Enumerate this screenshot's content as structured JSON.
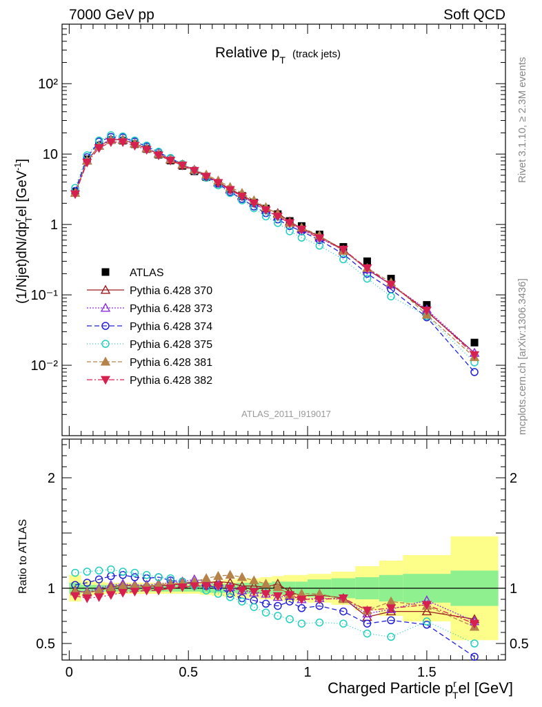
{
  "header": {
    "left": "7000 GeV pp",
    "right": "Soft QCD"
  },
  "side_labels": {
    "rivet": "Rivet 3.1.10, ≥ 2.3M events",
    "mcplots": "mcplots.cern.ch [arXiv:1306.3436]"
  },
  "plot_title": {
    "main": "Relative p",
    "sub": "T",
    "note": "(track jets)"
  },
  "analysis_tag": "ATLAS_2011_I919017",
  "colors": {
    "ATLAS": "#000000",
    "p370": "#9b1b1f",
    "p373": "#8a2be2",
    "p374": "#1f1fd6",
    "p375": "#1ecfbf",
    "p381": "#b5834a",
    "p382": "#d6204f",
    "band_inner": "#8ff08f",
    "band_outer": "#fdfd8a"
  },
  "chart_data": [
    {
      "type": "scatter",
      "title": "Relative pT (track jets)",
      "ylabel": "(1/Njet)dN/dp^r_T el [GeV^-1]",
      "yscale": "log",
      "ylim": [
        0.001,
        700
      ],
      "xlim": [
        -0.03,
        1.83
      ],
      "yticks": [
        "10⁻²",
        "10⁻¹",
        "1",
        "10",
        "10²"
      ],
      "legend_position": "left-middle",
      "x": [
        0.025,
        0.075,
        0.125,
        0.175,
        0.225,
        0.275,
        0.325,
        0.375,
        0.425,
        0.475,
        0.525,
        0.575,
        0.625,
        0.675,
        0.725,
        0.775,
        0.825,
        0.875,
        0.925,
        0.975,
        1.05,
        1.15,
        1.25,
        1.35,
        1.5,
        1.7
      ],
      "series": [
        {
          "name": "ATLAS",
          "key": "ATLAS",
          "marker": "square",
          "dash": "",
          "values": [
            2.9,
            8.4,
            13.2,
            15.8,
            15.5,
            13.8,
            11.8,
            9.8,
            8.1,
            6.8,
            5.7,
            4.7,
            3.8,
            3.1,
            2.55,
            2.05,
            1.68,
            1.4,
            1.12,
            0.95,
            0.72,
            0.48,
            0.3,
            0.17,
            0.072,
            0.021
          ]
        },
        {
          "name": "Pythia 6.428 370",
          "key": "p370",
          "marker": "tri-up-open",
          "dash": "",
          "values": [
            2.8,
            8.0,
            13.0,
            16.0,
            16.0,
            14.0,
            12.0,
            10.0,
            8.3,
            7.0,
            5.9,
            4.9,
            4.0,
            3.2,
            2.6,
            2.1,
            1.7,
            1.45,
            1.1,
            0.88,
            0.68,
            0.44,
            0.23,
            0.14,
            0.058,
            0.015
          ]
        },
        {
          "name": "Pythia 6.428 373",
          "key": "p373",
          "marker": "tri-up-open",
          "dash": "2,2",
          "values": [
            2.8,
            8.1,
            13.2,
            16.2,
            16.1,
            14.2,
            12.2,
            10.2,
            8.5,
            7.1,
            6.0,
            4.9,
            3.9,
            3.1,
            2.5,
            2.0,
            1.6,
            1.3,
            1.05,
            0.85,
            0.65,
            0.43,
            0.23,
            0.14,
            0.062,
            0.015
          ]
        },
        {
          "name": "Pythia 6.428 374",
          "key": "p374",
          "marker": "circle-open",
          "dash": "7,4",
          "values": [
            3.0,
            9.0,
            15.0,
            17.5,
            17.2,
            15.0,
            12.8,
            10.6,
            8.7,
            7.2,
            5.9,
            4.8,
            3.8,
            2.9,
            2.3,
            1.8,
            1.45,
            1.18,
            0.95,
            0.8,
            0.6,
            0.38,
            0.2,
            0.12,
            0.048,
            0.008
          ]
        },
        {
          "name": "Pythia 6.428 375",
          "key": "p375",
          "marker": "circle-open",
          "dash": "1,3",
          "values": [
            3.3,
            9.6,
            15.6,
            18.5,
            17.8,
            15.6,
            13.2,
            10.8,
            8.8,
            7.2,
            5.8,
            4.6,
            3.6,
            2.8,
            2.2,
            1.7,
            1.3,
            1.05,
            0.8,
            0.65,
            0.5,
            0.32,
            0.17,
            0.095,
            0.05,
            0.011
          ]
        },
        {
          "name": "Pythia 6.428 381",
          "key": "p381",
          "marker": "tri-up-filled",
          "dash": "6,3",
          "values": [
            2.8,
            8.0,
            13.0,
            15.8,
            15.8,
            14.0,
            12.0,
            10.0,
            8.4,
            7.1,
            6.0,
            5.1,
            4.2,
            3.4,
            2.8,
            2.2,
            1.75,
            1.4,
            1.05,
            0.9,
            0.7,
            0.42,
            0.24,
            0.15,
            0.052,
            0.013
          ]
        },
        {
          "name": "Pythia 6.428 382",
          "key": "p382",
          "marker": "tri-down-filled",
          "dash": "8,3,2,3",
          "values": [
            2.7,
            7.6,
            12.2,
            14.8,
            14.8,
            13.2,
            11.5,
            9.6,
            8.1,
            6.9,
            5.8,
            4.8,
            3.9,
            3.1,
            2.5,
            2.0,
            1.6,
            1.3,
            1.05,
            0.85,
            0.64,
            0.44,
            0.24,
            0.14,
            0.06,
            0.014
          ]
        }
      ]
    },
    {
      "type": "line",
      "xlabel": "Charged Particle p^r_T el [GeV]",
      "ylabel": "Ratio to ATLAS",
      "ylim": [
        0.35,
        2.35
      ],
      "yticks": [
        0.5,
        1,
        2
      ],
      "xticks": [
        0,
        0.5,
        1,
        1.5
      ],
      "bins": [
        0,
        0.05,
        0.1,
        0.15,
        0.2,
        0.25,
        0.3,
        0.35,
        0.4,
        0.45,
        0.5,
        0.55,
        0.6,
        0.65,
        0.7,
        0.75,
        0.8,
        0.85,
        0.9,
        0.95,
        1.0,
        1.1,
        1.2,
        1.3,
        1.4,
        1.6,
        1.8
      ],
      "band_inner": [
        0.05,
        0.03,
        0.03,
        0.03,
        0.03,
        0.03,
        0.03,
        0.03,
        0.03,
        0.03,
        0.03,
        0.04,
        0.04,
        0.04,
        0.05,
        0.05,
        0.05,
        0.06,
        0.06,
        0.06,
        0.08,
        0.09,
        0.1,
        0.12,
        0.13,
        0.16
      ],
      "band_outer": [
        0.12,
        0.07,
        0.06,
        0.05,
        0.05,
        0.05,
        0.05,
        0.05,
        0.05,
        0.05,
        0.05,
        0.06,
        0.07,
        0.08,
        0.09,
        0.09,
        0.1,
        0.11,
        0.12,
        0.12,
        0.13,
        0.15,
        0.2,
        0.25,
        0.3,
        0.47
      ],
      "x": [
        0.025,
        0.075,
        0.125,
        0.175,
        0.225,
        0.275,
        0.325,
        0.375,
        0.425,
        0.475,
        0.525,
        0.575,
        0.625,
        0.675,
        0.725,
        0.775,
        0.825,
        0.875,
        0.925,
        0.975,
        1.05,
        1.15,
        1.25,
        1.35,
        1.5,
        1.7
      ],
      "series": [
        {
          "name": "Pythia 6.428 370",
          "key": "p370",
          "marker": "tri-up-open",
          "dash": "",
          "values": [
            0.98,
            0.96,
            0.98,
            1.01,
            1.03,
            1.02,
            1.02,
            1.02,
            1.03,
            1.04,
            1.05,
            1.05,
            1.06,
            1.05,
            1.02,
            1.02,
            1.01,
            1.04,
            0.97,
            0.93,
            0.94,
            0.91,
            0.74,
            0.79,
            0.79,
            0.72
          ]
        },
        {
          "name": "Pythia 6.428 373",
          "key": "p373",
          "marker": "tri-up-open",
          "dash": "2,2",
          "values": [
            0.97,
            0.97,
            1.0,
            1.03,
            1.04,
            1.03,
            1.03,
            1.04,
            1.05,
            1.06,
            1.08,
            1.06,
            1.03,
            1.01,
            0.98,
            0.96,
            0.95,
            0.92,
            0.93,
            0.9,
            0.91,
            0.9,
            0.77,
            0.81,
            0.89,
            0.7
          ]
        },
        {
          "name": "Pythia 6.428 374",
          "key": "p374",
          "marker": "circle-open",
          "dash": "7,4",
          "values": [
            1.03,
            1.05,
            1.08,
            1.11,
            1.12,
            1.1,
            1.09,
            1.1,
            1.07,
            1.06,
            1.04,
            1.02,
            1.01,
            0.95,
            0.91,
            0.89,
            0.86,
            0.84,
            0.88,
            0.82,
            0.84,
            0.79,
            0.68,
            0.71,
            0.67,
            0.38
          ]
        },
        {
          "name": "Pythia 6.428 375",
          "key": "p375",
          "marker": "circle-open",
          "dash": "1,3",
          "values": [
            1.14,
            1.15,
            1.16,
            1.17,
            1.15,
            1.14,
            1.12,
            1.1,
            1.09,
            1.06,
            1.02,
            0.98,
            0.95,
            0.92,
            0.88,
            0.83,
            0.78,
            0.75,
            0.72,
            0.68,
            0.69,
            0.68,
            0.59,
            0.56,
            0.7,
            0.5
          ]
        },
        {
          "name": "Pythia 6.428 381",
          "key": "p381",
          "marker": "tri-up-filled",
          "dash": "6,3",
          "values": [
            0.97,
            0.96,
            0.98,
            1.0,
            1.02,
            1.02,
            1.02,
            1.03,
            1.04,
            1.05,
            1.06,
            1.09,
            1.11,
            1.12,
            1.1,
            1.07,
            1.04,
            1.01,
            0.94,
            0.95,
            0.95,
            0.9,
            0.8,
            0.88,
            0.84,
            0.65
          ]
        },
        {
          "name": "Pythia 6.428 382",
          "key": "p382",
          "marker": "tri-down-filled",
          "dash": "8,3,2,3",
          "values": [
            0.93,
            0.91,
            0.92,
            0.94,
            0.96,
            0.97,
            0.98,
            0.98,
            1.0,
            1.01,
            1.02,
            1.02,
            1.02,
            1.0,
            0.98,
            0.97,
            0.95,
            0.93,
            0.94,
            0.9,
            0.9,
            0.91,
            0.8,
            0.82,
            0.85,
            0.68
          ]
        }
      ]
    }
  ]
}
